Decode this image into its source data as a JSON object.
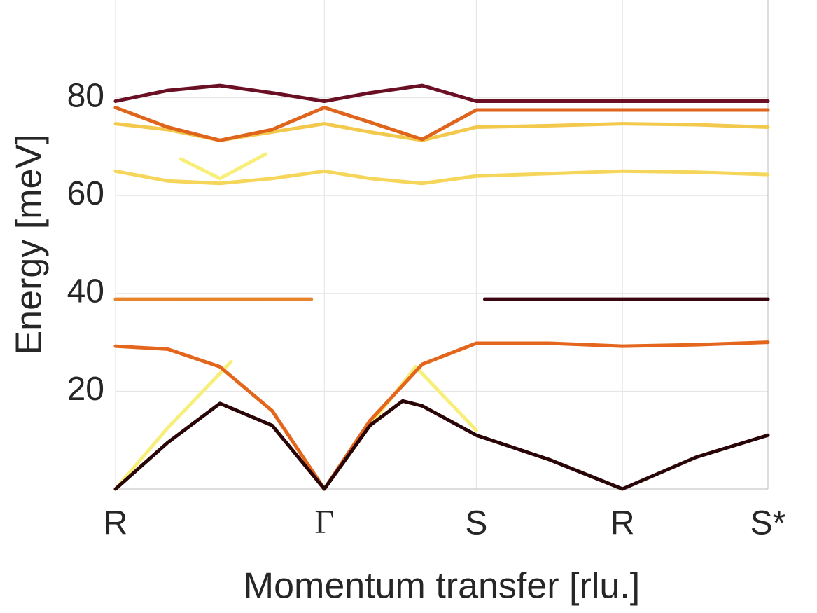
{
  "chart_data": {
    "type": "line",
    "xlabel": "Momentum transfer [rlu.]",
    "ylabel": "Energy [meV]",
    "xlim": [
      0,
      1
    ],
    "xticks": [
      {
        "value": 0,
        "label": "R"
      },
      {
        "value": 0.32,
        "label": "Γ"
      },
      {
        "value": 0.553,
        "label": "S"
      },
      {
        "value": 0.777,
        "label": "R"
      },
      {
        "value": 1,
        "label": "S*"
      }
    ],
    "ylim": [
      0,
      100
    ],
    "yticks": [
      20,
      40,
      60,
      80
    ],
    "grid": true,
    "series": [
      {
        "color": "#f7ef7a",
        "x": [
          0,
          0.08,
          0.177
        ],
        "values": [
          0,
          12.5,
          26
        ]
      },
      {
        "color": "#f7ef7a",
        "x": [
          0.32,
          0.39,
          0.46,
          0.553
        ],
        "values": [
          0,
          13,
          25,
          12
        ]
      },
      {
        "color": "#e3661c",
        "x": [
          0,
          0.08,
          0.16,
          0.24,
          0.32,
          0.39,
          0.47,
          0.553,
          0.665,
          0.777,
          0.89,
          1
        ],
        "values": [
          29.2,
          28.6,
          25,
          16,
          0,
          14,
          25.5,
          29.8,
          29.8,
          29.2,
          29.5,
          30
        ]
      },
      {
        "color": "#2a0508",
        "x": [
          0,
          0.08,
          0.16,
          0.24,
          0.32,
          0.39,
          0.44,
          0.47,
          0.553,
          0.665,
          0.777,
          0.89,
          1
        ],
        "values": [
          0,
          9.5,
          17.5,
          13,
          0,
          13,
          18,
          17,
          11,
          6,
          0,
          6.5,
          11
        ]
      },
      {
        "color": "#e8842a",
        "x": [
          0,
          0.3
        ],
        "values": [
          38.8,
          38.8
        ]
      },
      {
        "color": "#3a0610",
        "x": [
          0.566,
          1
        ],
        "values": [
          38.8,
          38.8
        ]
      },
      {
        "color": "#f5d65a",
        "x": [
          0,
          0.08,
          0.16,
          0.24,
          0.32,
          0.39,
          0.47,
          0.553,
          0.665,
          0.777,
          0.89,
          1
        ],
        "values": [
          65,
          63,
          62.5,
          63.5,
          65,
          63.5,
          62.5,
          64,
          64.5,
          65,
          64.8,
          64.3
        ]
      },
      {
        "color": "#f7ef7a",
        "x": [
          0.1,
          0.16,
          0.23
        ],
        "values": [
          67.5,
          63.5,
          68.5
        ]
      },
      {
        "color": "#f2c94c",
        "x": [
          0,
          0.08,
          0.16,
          0.24,
          0.32,
          0.39,
          0.47,
          0.553,
          0.665,
          0.777,
          0.89,
          1
        ],
        "values": [
          74.7,
          73.5,
          71.3,
          73,
          74.7,
          73,
          71.3,
          74,
          74.3,
          74.7,
          74.5,
          74
        ]
      },
      {
        "color": "#e0651c",
        "x": [
          0,
          0.08,
          0.16,
          0.24,
          0.32,
          0.39,
          0.47,
          0.553,
          0.665,
          0.777,
          0.89,
          1
        ],
        "values": [
          78,
          74,
          71.3,
          73.5,
          78,
          75,
          71.5,
          77.5,
          77.5,
          77.5,
          77.5,
          77.5
        ]
      },
      {
        "color": "#6a0f24",
        "x": [
          0,
          0.08,
          0.16,
          0.24,
          0.32,
          0.39,
          0.47,
          0.553,
          0.665,
          0.777,
          0.89,
          1
        ],
        "values": [
          79.3,
          81.5,
          82.5,
          81,
          79.3,
          81,
          82.5,
          79.3,
          79.3,
          79.3,
          79.3,
          79.3
        ]
      }
    ]
  }
}
